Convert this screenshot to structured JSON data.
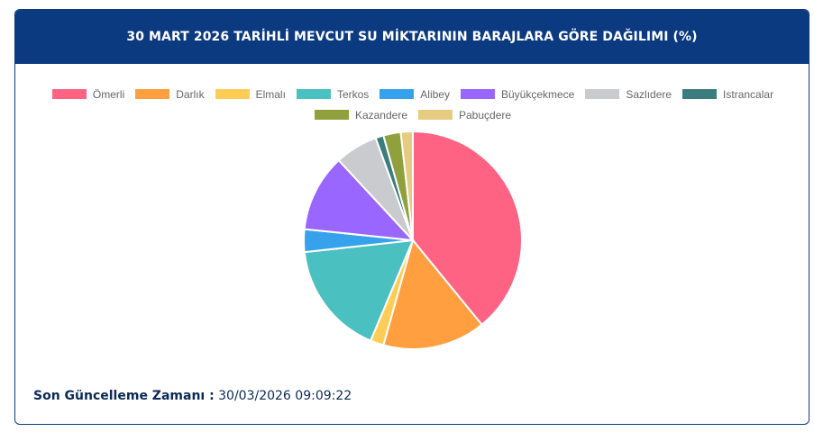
{
  "header": {
    "title": "30 MART 2026 TARİHLİ MEVCUT SU MİKTARININ BARAJLARA GÖRE DAĞILIMI (%)"
  },
  "chart_data": {
    "type": "pie",
    "title": "30 MART 2026 TARİHLİ MEVCUT SU MİKTARININ BARAJLARA GÖRE DAĞILIMI (%)",
    "legend_position": "top",
    "series": [
      {
        "name": "Ömerli",
        "value": 39.5,
        "color": "#ff6384"
      },
      {
        "name": "Darlık",
        "value": 15.4,
        "color": "#ff9f40"
      },
      {
        "name": "Elmalı",
        "value": 2.0,
        "color": "#ffcd56"
      },
      {
        "name": "Terkos",
        "value": 17.1,
        "color": "#4bc0c0"
      },
      {
        "name": "Alibey",
        "value": 3.4,
        "color": "#36a2eb"
      },
      {
        "name": "Büyükçekmece",
        "value": 11.6,
        "color": "#9966ff"
      },
      {
        "name": "Sazlıdere",
        "value": 6.4,
        "color": "#c9cbcf"
      },
      {
        "name": "Istrancalar",
        "value": 1.2,
        "color": "#3a7d7c"
      },
      {
        "name": "Kazandere",
        "value": 2.6,
        "color": "#8fa03c"
      },
      {
        "name": "Pabuçdere",
        "value": 1.8,
        "color": "#e6cc80"
      }
    ]
  },
  "footer": {
    "label": "Son Güncelleme Zamanı :",
    "value": "30/03/2026 09:09:22"
  }
}
